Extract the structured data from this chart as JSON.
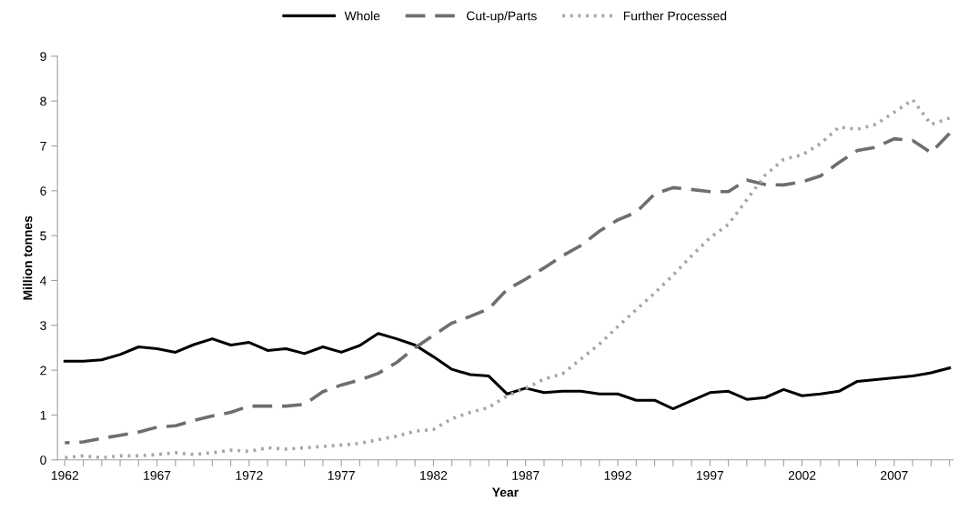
{
  "chart_data": {
    "type": "line",
    "xlabel": "Year",
    "ylabel": "Million tonnes",
    "x": [
      1962,
      1963,
      1964,
      1965,
      1966,
      1967,
      1968,
      1969,
      1970,
      1971,
      1972,
      1973,
      1974,
      1975,
      1976,
      1977,
      1978,
      1979,
      1980,
      1981,
      1982,
      1983,
      1984,
      1985,
      1986,
      1987,
      1988,
      1989,
      1990,
      1991,
      1992,
      1993,
      1994,
      1995,
      1996,
      1997,
      1998,
      1999,
      2000,
      2001,
      2002,
      2003,
      2004,
      2005,
      2006,
      2007,
      2008,
      2009,
      2010
    ],
    "series": [
      {
        "name": "Whole",
        "color": "#000000",
        "line_style": "solid",
        "values": [
          2.2,
          2.2,
          2.23,
          2.35,
          2.52,
          2.48,
          2.4,
          2.57,
          2.7,
          2.56,
          2.62,
          2.44,
          2.48,
          2.37,
          2.52,
          2.4,
          2.55,
          2.82,
          2.7,
          2.56,
          2.3,
          2.02,
          1.9,
          1.87,
          1.47,
          1.6,
          1.5,
          1.53,
          1.53,
          1.47,
          1.47,
          1.33,
          1.33,
          1.14,
          1.32,
          1.5,
          1.53,
          1.35,
          1.39,
          1.57,
          1.43,
          1.47,
          1.53,
          1.75,
          1.79,
          1.83,
          1.87,
          1.94,
          2.05
        ]
      },
      {
        "name": "Cut-up/Parts",
        "color": "#6e6e6e",
        "line_style": "dashed",
        "values": [
          0.38,
          0.4,
          0.48,
          0.55,
          0.62,
          0.73,
          0.76,
          0.88,
          0.98,
          1.06,
          1.2,
          1.2,
          1.2,
          1.24,
          1.52,
          1.67,
          1.78,
          1.93,
          2.17,
          2.5,
          2.78,
          3.05,
          3.2,
          3.37,
          3.8,
          4.03,
          4.28,
          4.55,
          4.78,
          5.1,
          5.35,
          5.52,
          5.93,
          6.07,
          6.03,
          5.98,
          5.98,
          6.24,
          6.14,
          6.13,
          6.2,
          6.33,
          6.63,
          6.9,
          6.97,
          7.16,
          7.12,
          6.85,
          7.28
        ]
      },
      {
        "name": "Further Processed",
        "color": "#a6a6a6",
        "line_style": "dotted",
        "values": [
          0.05,
          0.09,
          0.05,
          0.09,
          0.09,
          0.12,
          0.16,
          0.12,
          0.16,
          0.22,
          0.19,
          0.27,
          0.24,
          0.27,
          0.3,
          0.33,
          0.37,
          0.45,
          0.53,
          0.64,
          0.68,
          0.92,
          1.06,
          1.17,
          1.43,
          1.6,
          1.8,
          1.92,
          2.25,
          2.58,
          2.97,
          3.35,
          3.72,
          4.12,
          4.55,
          4.95,
          5.25,
          5.8,
          6.35,
          6.7,
          6.8,
          7.05,
          7.42,
          7.37,
          7.48,
          7.75,
          8.03,
          7.48,
          7.62
        ]
      }
    ],
    "xlim": [
      1961.6,
      2010.2
    ],
    "xticks": [
      1962,
      {
        "value": 1963,
        "label": null
      },
      {
        "value": 1964,
        "label": null
      },
      {
        "value": 1965,
        "label": null
      },
      {
        "value": 1966,
        "label": null
      },
      1967,
      {
        "value": 1968,
        "label": null
      },
      {
        "value": 1969,
        "label": null
      },
      {
        "value": 1970,
        "label": null
      },
      {
        "value": 1971,
        "label": null
      },
      1972,
      {
        "value": 1973,
        "label": null
      },
      {
        "value": 1974,
        "label": null
      },
      {
        "value": 1975,
        "label": null
      },
      {
        "value": 1976,
        "label": null
      },
      1977,
      {
        "value": 1978,
        "label": null
      },
      {
        "value": 1979,
        "label": null
      },
      {
        "value": 1980,
        "label": null
      },
      {
        "value": 1981,
        "label": null
      },
      1982,
      {
        "value": 1983,
        "label": null
      },
      {
        "value": 1984,
        "label": null
      },
      {
        "value": 1985,
        "label": null
      },
      {
        "value": 1986,
        "label": null
      },
      1987,
      {
        "value": 1988,
        "label": null
      },
      {
        "value": 1989,
        "label": null
      },
      {
        "value": 1990,
        "label": null
      },
      {
        "value": 1991,
        "label": null
      },
      1992,
      {
        "value": 1993,
        "label": null
      },
      {
        "value": 1994,
        "label": null
      },
      {
        "value": 1995,
        "label": null
      },
      {
        "value": 1996,
        "label": null
      },
      1997,
      {
        "value": 1998,
        "label": null
      },
      {
        "value": 1999,
        "label": null
      },
      {
        "value": 2000,
        "label": null
      },
      {
        "value": 2001,
        "label": null
      },
      2002,
      {
        "value": 2003,
        "label": null
      },
      {
        "value": 2004,
        "label": null
      },
      {
        "value": 2005,
        "label": null
      },
      {
        "value": 2006,
        "label": null
      },
      2007,
      {
        "value": 2008,
        "label": null
      },
      {
        "value": 2009,
        "label": null
      },
      {
        "value": 2010,
        "label": null
      }
    ],
    "ylim": [
      0,
      9
    ],
    "yticks": [
      0,
      1,
      2,
      3,
      4,
      5,
      6,
      7,
      8,
      9
    ],
    "grid": false,
    "legend": "top",
    "marker": "none"
  }
}
